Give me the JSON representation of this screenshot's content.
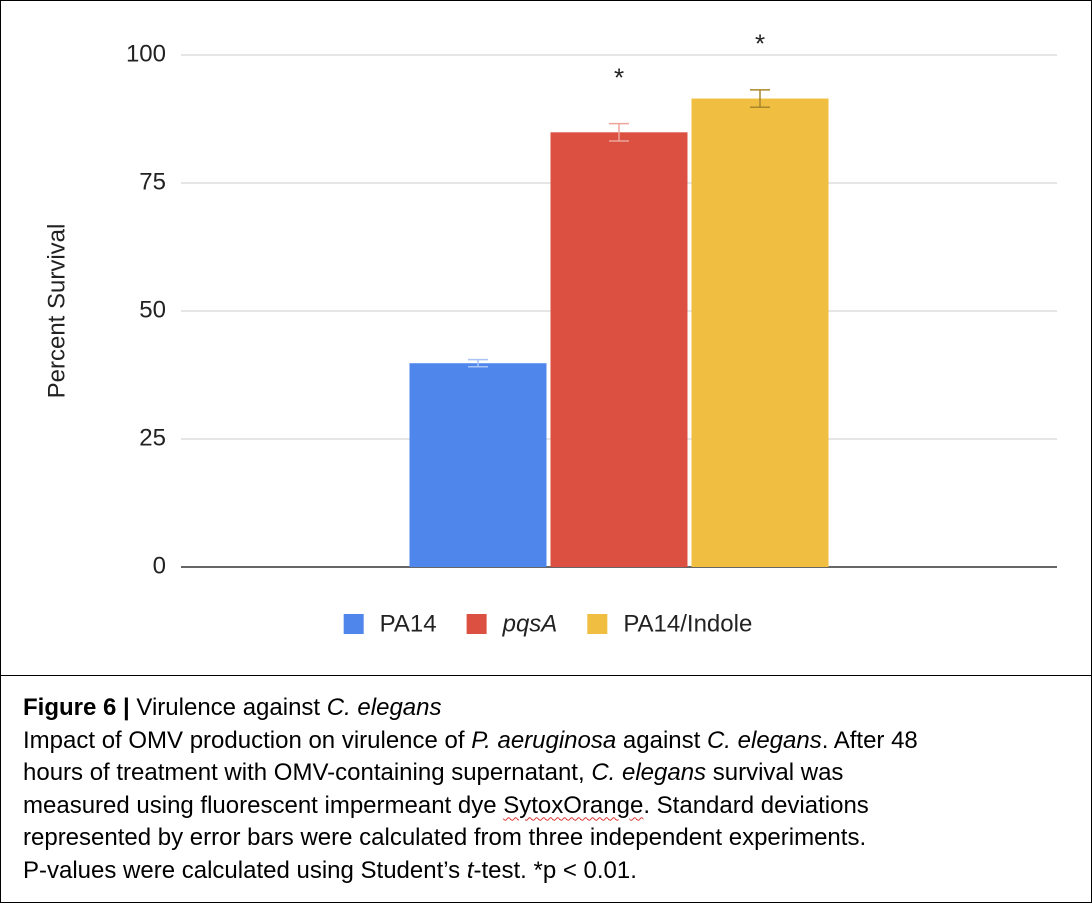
{
  "chart_data": {
    "type": "bar",
    "ylabel": "Percent Survival",
    "categories": [
      null
    ],
    "series": [
      {
        "name": "PA14",
        "color": "#4f86ec",
        "error_color": "#a9c4f5",
        "values": [
          39.8
        ],
        "errors": [
          0.7
        ]
      },
      {
        "name": "pqsA",
        "italic": true,
        "color": "#db5040",
        "error_color": "#eda59c",
        "values": [
          84.9
        ],
        "errors": [
          1.7
        ],
        "annotation": "*"
      },
      {
        "name": "PA14/Indole",
        "color": "#f0be41",
        "error_color": "#a9862a",
        "values": [
          91.5
        ],
        "errors": [
          1.7
        ],
        "annotation": "*"
      }
    ],
    "ylim": [
      0,
      100
    ],
    "yticks": [
      0,
      25,
      50,
      75,
      100
    ],
    "grid": true,
    "legend": "bottom"
  },
  "caption": {
    "title": [
      {
        "text": "Figure 6 |",
        "bold": true
      },
      {
        "text": " Virulence against "
      },
      {
        "text": "C. elegans",
        "italic": true
      }
    ],
    "body": [
      [
        {
          "text": "Impact of OMV production on virulence of "
        },
        {
          "text": "P. aeruginosa",
          "italic": true
        },
        {
          "text": " against "
        },
        {
          "text": "C. elegans",
          "italic": true
        },
        {
          "text": ". After 48"
        }
      ],
      [
        {
          "text": "hours of treatment with OMV-containing supernatant, "
        },
        {
          "text": "C. elegans",
          "italic": true
        },
        {
          "text": " survival was"
        }
      ],
      [
        {
          "text": "measured using fluorescent impermeant dye "
        },
        {
          "text": "SytoxOrange",
          "misspelled": true
        },
        {
          "text": ". Standard deviations"
        }
      ],
      [
        {
          "text": "represented by error bars were calculated from three independent experiments."
        }
      ],
      [
        {
          "text": "P-values were calculated using Student’s "
        },
        {
          "text": "t",
          "italic": true
        },
        {
          "text": "-test. *p < 0.01."
        }
      ]
    ]
  }
}
